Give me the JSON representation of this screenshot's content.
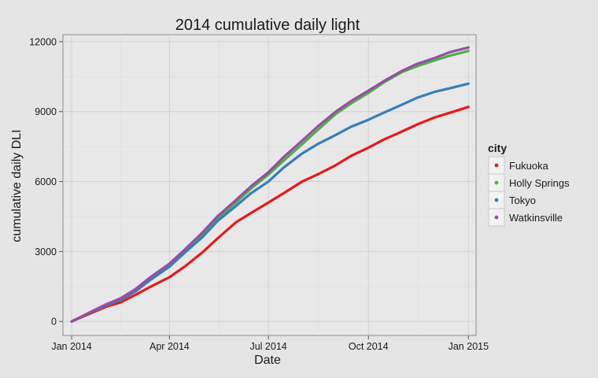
{
  "chart_data": {
    "type": "line",
    "title": "2014 cumulative daily light",
    "xlabel": "Date",
    "ylabel": "cumulative daily DLI",
    "x_axis_type": "date",
    "xlim": [
      "2013-12-24",
      "2015-01-08"
    ],
    "ylim": [
      -600,
      12300
    ],
    "x_ticks": [
      {
        "date": "2014-01-01",
        "label": "Jan 2014"
      },
      {
        "date": "2014-04-01",
        "label": "Apr 2014"
      },
      {
        "date": "2014-07-01",
        "label": "Jul 2014"
      },
      {
        "date": "2014-10-01",
        "label": "Oct 2014"
      },
      {
        "date": "2015-01-01",
        "label": "Jan 2015"
      }
    ],
    "y_ticks": [
      0,
      3000,
      6000,
      9000,
      12000
    ],
    "grid": true,
    "legend": {
      "title": "city",
      "position": "right"
    },
    "x": [
      "2014-01-01",
      "2014-01-15",
      "2014-02-01",
      "2014-02-15",
      "2014-03-01",
      "2014-03-15",
      "2014-04-01",
      "2014-04-15",
      "2014-05-01",
      "2014-05-15",
      "2014-06-01",
      "2014-06-15",
      "2014-07-01",
      "2014-07-15",
      "2014-08-01",
      "2014-08-15",
      "2014-09-01",
      "2014-09-15",
      "2014-10-01",
      "2014-10-15",
      "2014-11-01",
      "2014-11-15",
      "2014-12-01",
      "2014-12-15",
      "2015-01-01"
    ],
    "series": [
      {
        "name": "Fukuoka",
        "color": "#e41a1c",
        "values": [
          0,
          280,
          620,
          820,
          1150,
          1500,
          1900,
          2350,
          2950,
          3550,
          4250,
          4650,
          5100,
          5500,
          6000,
          6300,
          6700,
          7100,
          7450,
          7800,
          8150,
          8450,
          8750,
          8950,
          9200
        ]
      },
      {
        "name": "Holly Springs",
        "color": "#4daf4a",
        "values": [
          0,
          320,
          700,
          950,
          1350,
          1850,
          2400,
          3000,
          3700,
          4400,
          5100,
          5700,
          6300,
          6900,
          7600,
          8200,
          8900,
          9350,
          9800,
          10250,
          10700,
          10950,
          11200,
          11400,
          11600
        ]
      },
      {
        "name": "Tokyo",
        "color": "#377eb8",
        "values": [
          0,
          310,
          680,
          920,
          1300,
          1800,
          2350,
          2950,
          3600,
          4300,
          4950,
          5500,
          6000,
          6600,
          7200,
          7600,
          8000,
          8350,
          8650,
          8950,
          9300,
          9600,
          9850,
          10000,
          10200
        ]
      },
      {
        "name": "Watkinsville",
        "color": "#984ea3",
        "values": [
          0,
          330,
          720,
          990,
          1400,
          1920,
          2480,
          3080,
          3800,
          4500,
          5200,
          5800,
          6400,
          7050,
          7750,
          8350,
          9000,
          9450,
          9900,
          10300,
          10750,
          11050,
          11300,
          11550,
          11750
        ]
      }
    ]
  }
}
